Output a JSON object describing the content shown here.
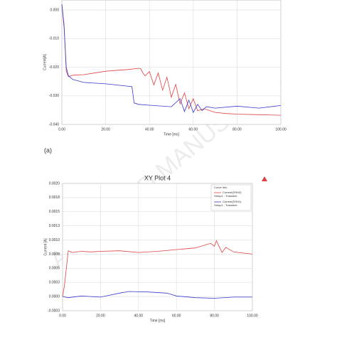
{
  "chart_data": [
    {
      "type": "line",
      "y_label": "Current[A]",
      "x_label": "Time [ms]",
      "caption": "(a)",
      "xlim": [
        0,
        100
      ],
      "xticks": [
        {
          "value": 0,
          "label": "0.00"
        },
        {
          "value": 20,
          "label": "20.00"
        },
        {
          "value": 40,
          "label": "40.00"
        },
        {
          "value": 60,
          "label": "60.00"
        },
        {
          "value": 80,
          "label": "80.00"
        },
        {
          "value": 100,
          "label": "100.00"
        }
      ],
      "ylim": [
        -0.04,
        0.0035
      ],
      "yticks": [
        {
          "value": 0,
          "label": "0.000"
        },
        {
          "value": -0.01,
          "label": "-0.010"
        },
        {
          "value": -0.02,
          "label": "-0.020"
        },
        {
          "value": -0.03,
          "label": "-0.030"
        },
        {
          "value": -0.04,
          "label": "-0.040"
        }
      ],
      "grid": true,
      "series": [
        {
          "color": "#e04040",
          "x": [
            0,
            1,
            2,
            3,
            5,
            10,
            20,
            30,
            35,
            36,
            37,
            38,
            40,
            42,
            44,
            46,
            48,
            50,
            52,
            54,
            56,
            58,
            60,
            62,
            65,
            70,
            75,
            80,
            90,
            100
          ],
          "values": [
            0.002,
            -0.005,
            -0.0214,
            -0.0233,
            -0.0228,
            -0.0226,
            -0.0214,
            -0.0208,
            -0.0204,
            -0.0205,
            -0.022,
            -0.023,
            -0.0215,
            -0.0262,
            -0.022,
            -0.028,
            -0.0235,
            -0.0305,
            -0.026,
            -0.0328,
            -0.029,
            -0.0345,
            -0.031,
            -0.0352,
            -0.0345,
            -0.0358,
            -0.0362,
            -0.0364,
            -0.0366,
            -0.0368
          ]
        },
        {
          "color": "#3a3ad0",
          "x": [
            0,
            1,
            2,
            3,
            5,
            10,
            20,
            32,
            33,
            35,
            40,
            50,
            54,
            56,
            58,
            60,
            62,
            64,
            66,
            70,
            80,
            90,
            100
          ],
          "values": [
            0.002,
            -0.006,
            -0.0201,
            -0.023,
            -0.0243,
            -0.0253,
            -0.0258,
            -0.0268,
            -0.0325,
            -0.033,
            -0.0333,
            -0.0338,
            -0.031,
            -0.0355,
            -0.0315,
            -0.0358,
            -0.033,
            -0.0352,
            -0.0338,
            -0.0343,
            -0.0336,
            -0.0343,
            -0.0334
          ]
        }
      ]
    },
    {
      "type": "line",
      "title": "XY Plot 4",
      "y_label": "Current [A]",
      "x_label": "Time [ms]",
      "legend_title": "Curve Info",
      "xlim": [
        0,
        100
      ],
      "xticks": [
        {
          "value": 0,
          "label": "0.00"
        },
        {
          "value": 20,
          "label": "20.00"
        },
        {
          "value": 40,
          "label": "40.00"
        },
        {
          "value": 60,
          "label": "60.00"
        },
        {
          "value": 80,
          "label": "80.00"
        },
        {
          "value": 100,
          "label": "100.00"
        }
      ],
      "ylim": [
        -0.00025,
        0.002
      ],
      "yticks": [
        {
          "value": 0.002,
          "label": "0.0020"
        },
        {
          "value": 0.00175,
          "label": "0.0018"
        },
        {
          "value": 0.0015,
          "label": "0.0015"
        },
        {
          "value": 0.00125,
          "label": "0.0013"
        },
        {
          "value": 0.001,
          "label": "0.0010"
        },
        {
          "value": 0.00075,
          "label": "0.0008"
        },
        {
          "value": 0.0005,
          "label": "0.0005"
        },
        {
          "value": 0.00025,
          "label": "0.0003"
        },
        {
          "value": 0,
          "label": "0.0000"
        },
        {
          "value": -0.00025,
          "label": "-0.0003"
        }
      ],
      "grid": true,
      "series": [
        {
          "name": "Current(SSH2)",
          "setup": "Setup1 : Transient",
          "color": "#e04040",
          "x": [
            0,
            1,
            3,
            5,
            10,
            15,
            20,
            30,
            40,
            50,
            60,
            70,
            78,
            80,
            81,
            82,
            84,
            86,
            90,
            95,
            100
          ],
          "values": [
            0,
            0.0002,
            0.00081,
            0.00078,
            0.0008,
            0.00079,
            0.0008,
            0.00081,
            0.00078,
            0.0008,
            0.00083,
            0.00086,
            0.00094,
            0.00089,
            0.00099,
            0.00092,
            0.00078,
            0.00087,
            0.00079,
            0.00077,
            0.00075
          ]
        },
        {
          "name": "Current(SSH1)",
          "setup": "Setup1 : Transient",
          "color": "#3a3ad0",
          "x": [
            0,
            3,
            10,
            20,
            30,
            35,
            45,
            55,
            60,
            70,
            80,
            90,
            100
          ],
          "values": [
            0,
            -2e-05,
            1e-05,
            -1e-05,
            6e-05,
            9e-05,
            8e-05,
            6e-05,
            1e-05,
            -2e-05,
            -3e-05,
            -1e-05,
            -1e-05
          ]
        }
      ]
    }
  ],
  "watermark": "ACCEPTED MANUSCRIPT"
}
